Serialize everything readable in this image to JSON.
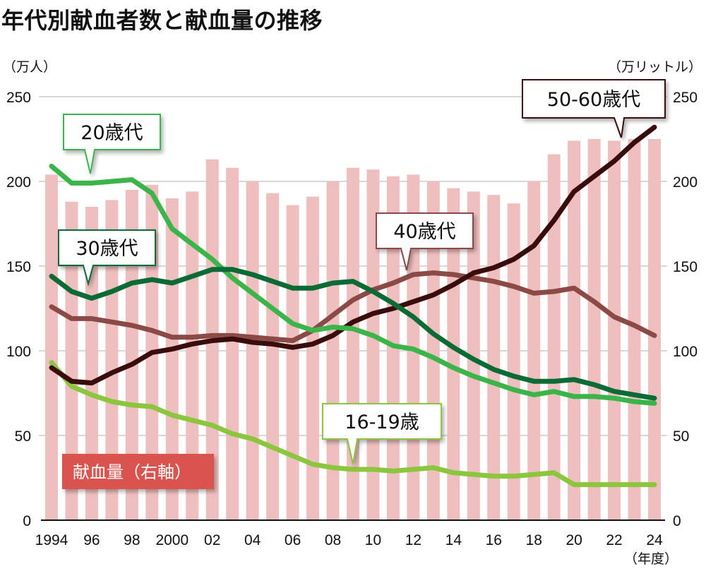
{
  "title": "年代別献血者数と献血量の推移",
  "units": {
    "left": "（万人）",
    "right": "（万リットル）",
    "x": "（年度）"
  },
  "legend": {
    "bars_label": "献血量（右軸）"
  },
  "colors": {
    "bars": "#efbfbf",
    "legend_bg": "#d9534f",
    "age_16_19": "#8cc63f",
    "age_20s": "#3bb54a",
    "age_30s": "#0b6b35",
    "age_40s": "#8b4a46",
    "age_50_60s": "#3a0d0d",
    "grid": "#cccccc"
  },
  "chart_data": {
    "type": "bar+line",
    "title": "年代別献血者数と献血量の推移",
    "xlabel": "（年度）",
    "ylabel_left": "（万人）",
    "ylabel_right": "（万リットル）",
    "ylim_left": [
      0,
      250
    ],
    "ylim_right": [
      0,
      250
    ],
    "yticks": [
      0,
      50,
      100,
      150,
      200,
      250
    ],
    "grid": true,
    "x": [
      1994,
      1995,
      1996,
      1997,
      1998,
      1999,
      2000,
      2001,
      2002,
      2003,
      2004,
      2005,
      2006,
      2007,
      2008,
      2009,
      2010,
      2011,
      2012,
      2013,
      2014,
      2015,
      2016,
      2017,
      2018,
      2019,
      2020,
      2021,
      2022,
      2023,
      2024
    ],
    "xtick_values": [
      1994,
      1996,
      1998,
      2000,
      2002,
      2004,
      2006,
      2008,
      2010,
      2012,
      2014,
      2016,
      2018,
      2020,
      2022,
      2024
    ],
    "xtick_labels": [
      "1994",
      "96",
      "98",
      "2000",
      "02",
      "04",
      "06",
      "08",
      "10",
      "12",
      "14",
      "16",
      "18",
      "20",
      "22",
      "24"
    ],
    "bars": {
      "name": "献血量（右軸）",
      "axis": "right",
      "values": [
        204,
        188,
        185,
        189,
        195,
        198,
        190,
        194,
        213,
        208,
        200,
        193,
        186,
        191,
        200,
        208,
        207,
        203,
        204,
        200,
        196,
        194,
        192,
        187,
        200,
        216,
        224,
        225,
        224,
        225,
        225
      ]
    },
    "series": [
      {
        "name": "16-19歳",
        "label": "16-19歳",
        "axis": "left",
        "color_key": "age_16_19",
        "values": [
          93,
          79,
          74,
          70,
          68,
          67,
          62,
          59,
          56,
          51,
          48,
          43,
          38,
          33,
          31,
          30,
          30,
          29,
          30,
          31,
          28,
          27,
          26,
          26,
          27,
          28,
          21,
          21,
          21,
          21,
          21
        ]
      },
      {
        "name": "20歳代",
        "label": "20歳代",
        "axis": "left",
        "color_key": "age_20s",
        "values": [
          209,
          199,
          199,
          200,
          201,
          193,
          172,
          163,
          154,
          143,
          134,
          125,
          116,
          112,
          114,
          113,
          109,
          103,
          101,
          96,
          90,
          85,
          81,
          77,
          74,
          76,
          73,
          73,
          72,
          70,
          69
        ]
      },
      {
        "name": "30歳代",
        "label": "30歳代",
        "axis": "left",
        "color_key": "age_30s",
        "values": [
          144,
          135,
          131,
          135,
          140,
          142,
          140,
          144,
          148,
          148,
          145,
          141,
          137,
          137,
          140,
          141,
          135,
          128,
          120,
          110,
          102,
          95,
          89,
          85,
          82,
          82,
          83,
          80,
          76,
          74,
          72
        ]
      },
      {
        "name": "40歳代",
        "label": "40歳代",
        "axis": "left",
        "color_key": "age_40s",
        "values": [
          126,
          119,
          119,
          117,
          115,
          112,
          108,
          108,
          109,
          109,
          108,
          107,
          106,
          112,
          121,
          130,
          136,
          140,
          145,
          146,
          145,
          143,
          141,
          138,
          134,
          135,
          137,
          129,
          120,
          115,
          109
        ]
      },
      {
        "name": "50-60歳代",
        "label": "50-60歳代",
        "axis": "left",
        "color_key": "age_50_60s",
        "values": [
          90,
          82,
          81,
          87,
          92,
          99,
          101,
          104,
          106,
          107,
          105,
          104,
          102,
          104,
          109,
          117,
          122,
          125,
          129,
          133,
          139,
          146,
          149,
          154,
          162,
          177,
          194,
          203,
          212,
          223,
          232
        ]
      }
    ]
  }
}
